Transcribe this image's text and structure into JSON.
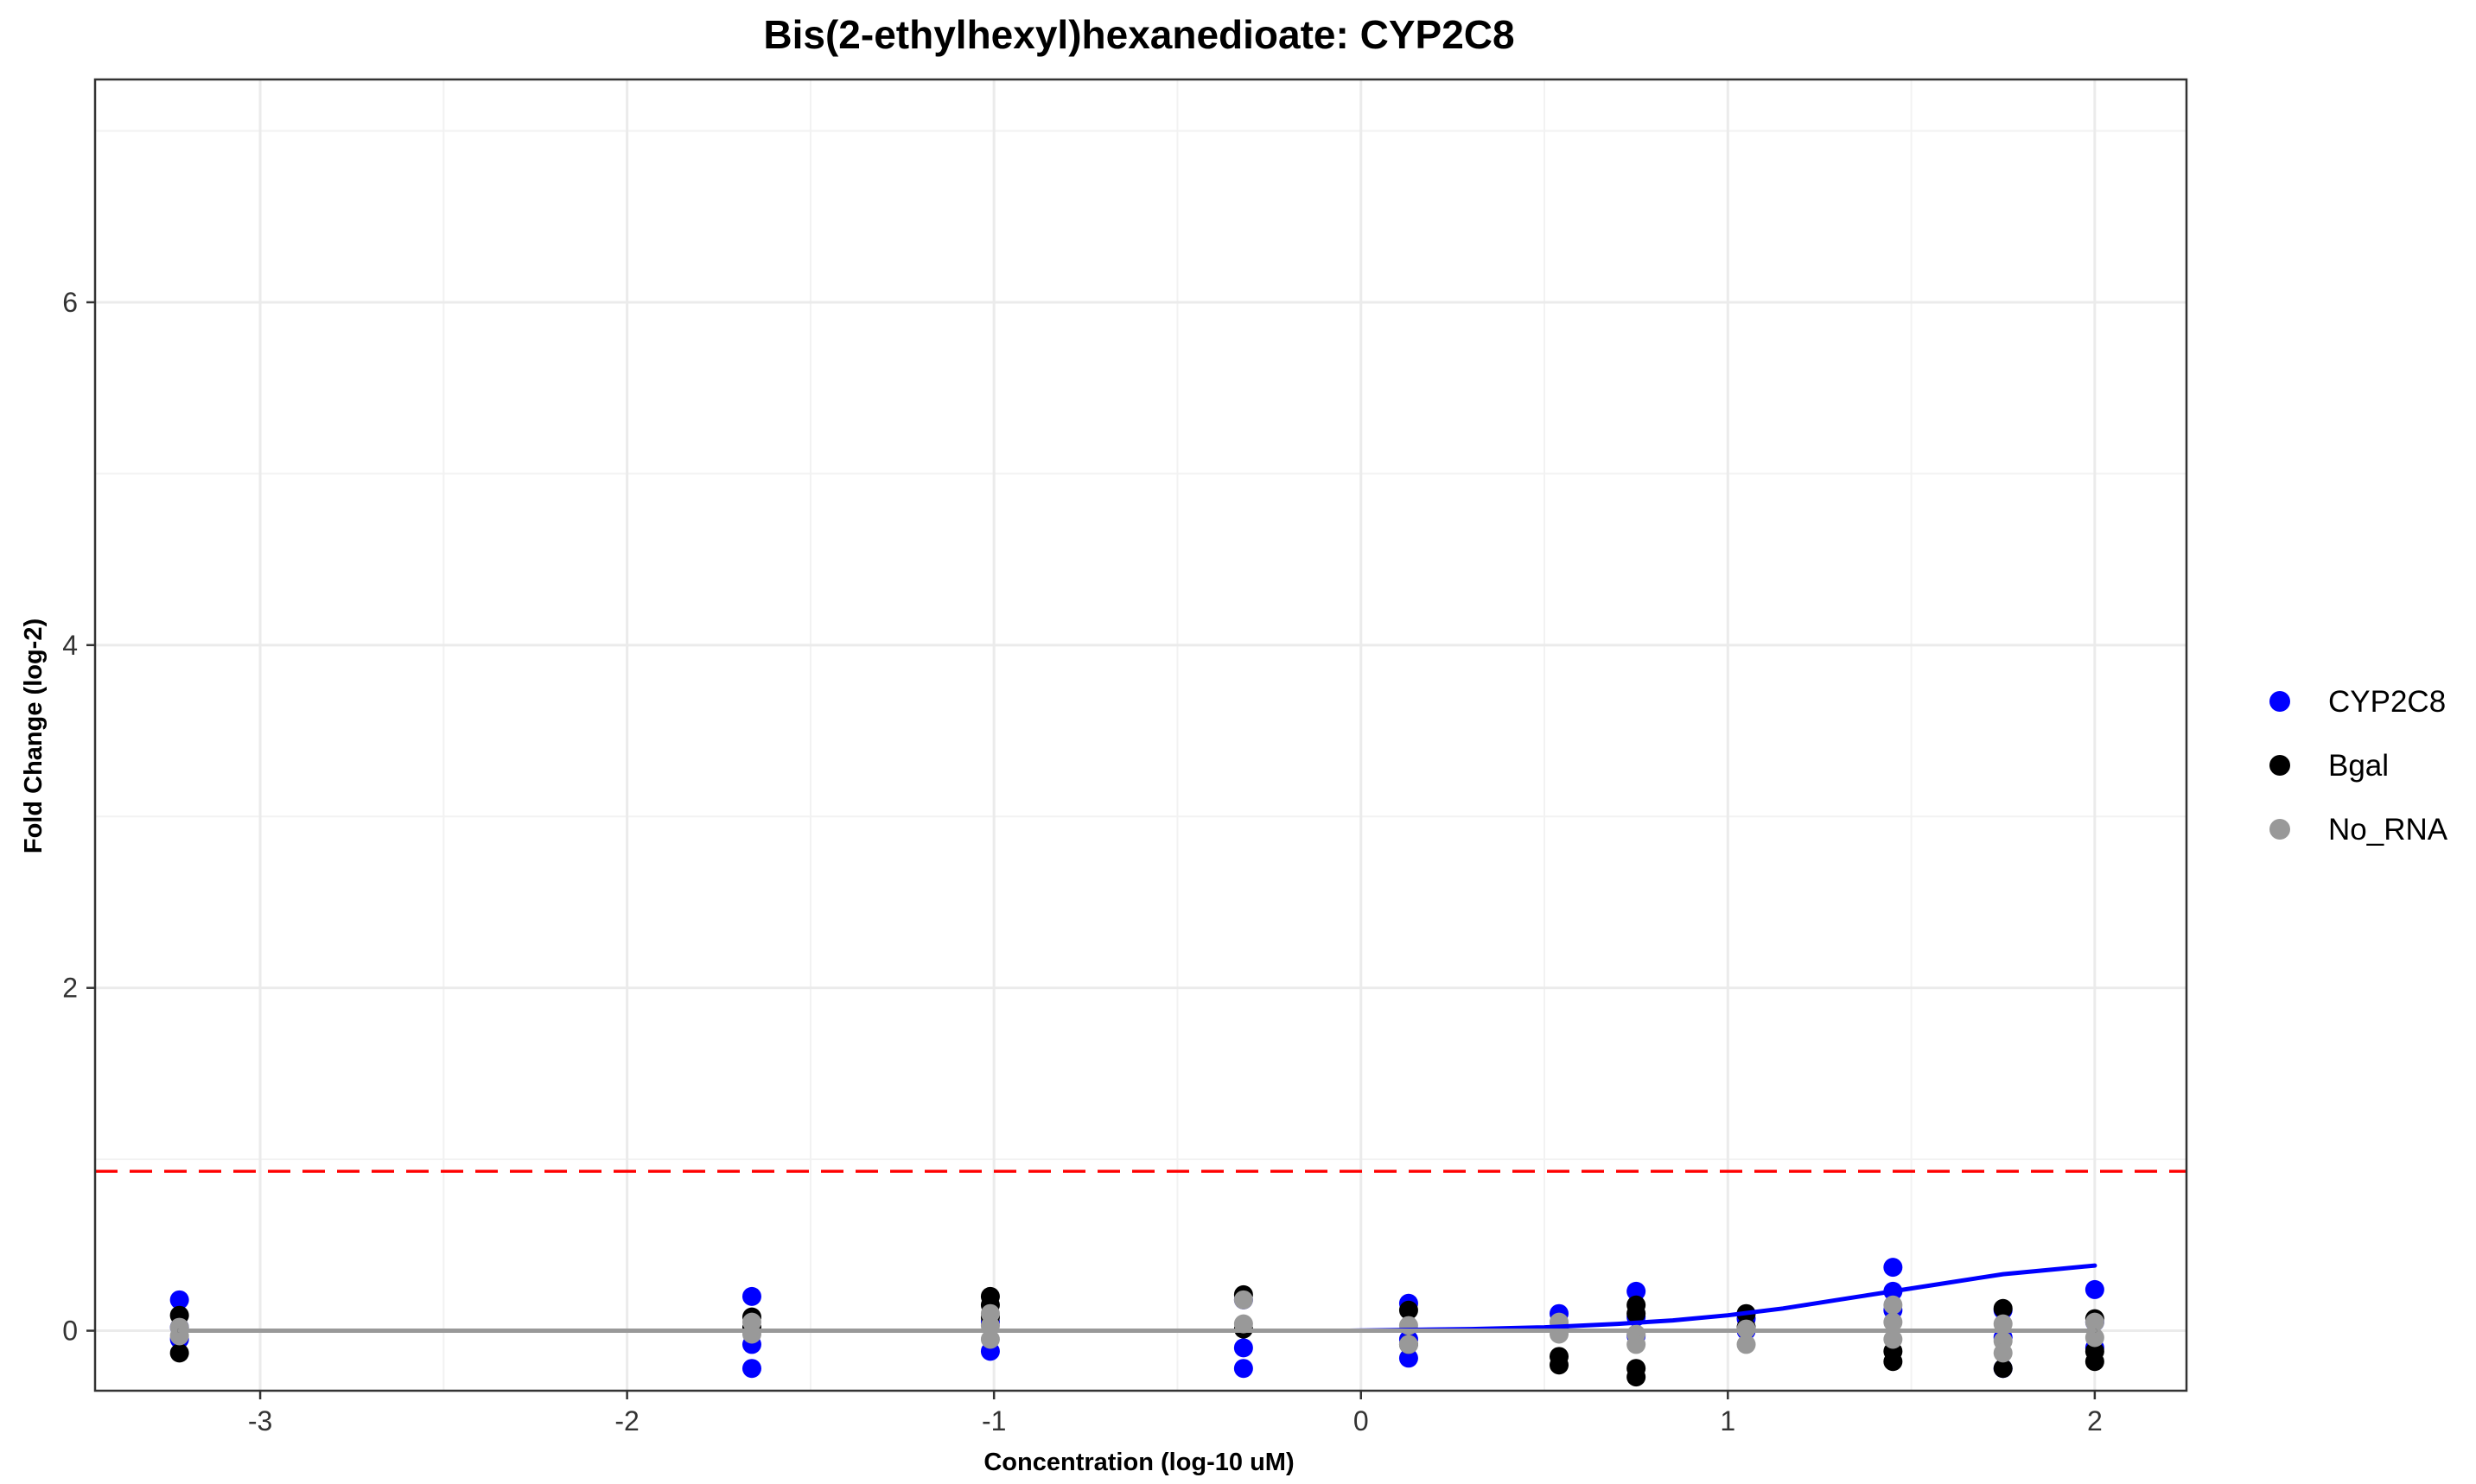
{
  "chart_data": {
    "type": "scatter",
    "title": "Bis(2-ethylhexyl)hexanedioate: CYP2C8",
    "xlabel": "Concentration (log-10 uM)",
    "ylabel": "Fold Change (log-2)",
    "xlim": [
      -3.45,
      2.25
    ],
    "ylim": [
      -0.35,
      7.3
    ],
    "x_ticks": [
      -3,
      -2,
      -1,
      0,
      1,
      2
    ],
    "x_tick_labels": [
      "-3",
      "-2",
      "-1",
      "0",
      "1",
      "2"
    ],
    "y_ticks": [
      0,
      2,
      4,
      6
    ],
    "y_tick_labels": [
      "0",
      "2",
      "4",
      "6"
    ],
    "grid": true,
    "legend_position": "right",
    "threshold_line": {
      "y": 0.93,
      "color": "#ff0000",
      "style": "dashed"
    },
    "series": [
      {
        "name": "CYP2C8",
        "color": "#0000ff",
        "points": [
          [
            -3.22,
            0.18
          ],
          [
            -3.22,
            0.02
          ],
          [
            -3.22,
            -0.05
          ],
          [
            -1.66,
            0.2
          ],
          [
            -1.66,
            -0.08
          ],
          [
            -1.66,
            -0.22
          ],
          [
            -1.01,
            0.05
          ],
          [
            -1.01,
            -0.12
          ],
          [
            -0.32,
            0.18
          ],
          [
            -0.32,
            -0.1
          ],
          [
            -0.32,
            -0.22
          ],
          [
            0.13,
            0.16
          ],
          [
            0.13,
            -0.05
          ],
          [
            0.13,
            -0.16
          ],
          [
            0.54,
            0.1
          ],
          [
            0.54,
            0.02
          ],
          [
            0.75,
            0.23
          ],
          [
            0.75,
            0.08
          ],
          [
            0.75,
            -0.03
          ],
          [
            1.05,
            0.07
          ],
          [
            1.05,
            0.0
          ],
          [
            1.45,
            0.37
          ],
          [
            1.45,
            0.23
          ],
          [
            1.45,
            0.12
          ],
          [
            1.75,
            0.12
          ],
          [
            1.75,
            -0.04
          ],
          [
            1.75,
            -0.22
          ],
          [
            2.0,
            0.24
          ],
          [
            2.0,
            0.05
          ],
          [
            2.0,
            -0.1
          ]
        ],
        "fit": [
          [
            -0.03,
            0.0
          ],
          [
            0.3,
            0.01
          ],
          [
            0.5,
            0.02
          ],
          [
            0.7,
            0.04
          ],
          [
            0.85,
            0.06
          ],
          [
            1.0,
            0.09
          ],
          [
            1.15,
            0.13
          ],
          [
            1.3,
            0.18
          ],
          [
            1.45,
            0.23
          ],
          [
            1.6,
            0.28
          ],
          [
            1.75,
            0.33
          ],
          [
            1.9,
            0.36
          ],
          [
            2.0,
            0.38
          ]
        ]
      },
      {
        "name": "Bgal",
        "color": "#000000",
        "points": [
          [
            -3.22,
            0.09
          ],
          [
            -3.22,
            -0.13
          ],
          [
            -1.66,
            0.08
          ],
          [
            -1.66,
            0.02
          ],
          [
            -1.01,
            0.2
          ],
          [
            -1.01,
            0.15
          ],
          [
            -1.01,
            0.08
          ],
          [
            -0.32,
            0.21
          ],
          [
            -0.32,
            0.01
          ],
          [
            0.13,
            0.12
          ],
          [
            0.13,
            -0.08
          ],
          [
            0.54,
            -0.15
          ],
          [
            0.54,
            -0.2
          ],
          [
            0.75,
            0.15
          ],
          [
            0.75,
            0.1
          ],
          [
            0.75,
            -0.22
          ],
          [
            0.75,
            -0.27
          ],
          [
            1.05,
            0.1
          ],
          [
            1.05,
            0.02
          ],
          [
            1.45,
            -0.12
          ],
          [
            1.45,
            -0.18
          ],
          [
            1.75,
            0.13
          ],
          [
            1.75,
            -0.22
          ],
          [
            2.0,
            0.07
          ],
          [
            2.0,
            -0.12
          ],
          [
            2.0,
            -0.18
          ]
        ],
        "fit": [
          [
            -3.22,
            0.0
          ],
          [
            2.0,
            0.0
          ]
        ]
      },
      {
        "name": "No_RNA",
        "color": "#999999",
        "points": [
          [
            -3.22,
            0.02
          ],
          [
            -3.22,
            -0.03
          ],
          [
            -1.66,
            0.05
          ],
          [
            -1.66,
            -0.02
          ],
          [
            -1.01,
            0.1
          ],
          [
            -1.01,
            0.03
          ],
          [
            -1.01,
            -0.05
          ],
          [
            -0.32,
            0.18
          ],
          [
            -0.32,
            0.04
          ],
          [
            0.13,
            0.03
          ],
          [
            0.13,
            -0.08
          ],
          [
            0.54,
            0.05
          ],
          [
            0.54,
            -0.02
          ],
          [
            0.75,
            -0.02
          ],
          [
            0.75,
            -0.08
          ],
          [
            1.05,
            0.01
          ],
          [
            1.05,
            -0.08
          ],
          [
            1.45,
            0.15
          ],
          [
            1.45,
            0.05
          ],
          [
            1.45,
            -0.05
          ],
          [
            1.75,
            0.04
          ],
          [
            1.75,
            -0.06
          ],
          [
            1.75,
            -0.13
          ],
          [
            2.0,
            0.05
          ],
          [
            2.0,
            -0.04
          ]
        ],
        "fit": [
          [
            -3.22,
            0.0
          ],
          [
            2.0,
            0.0
          ]
        ]
      }
    ]
  }
}
